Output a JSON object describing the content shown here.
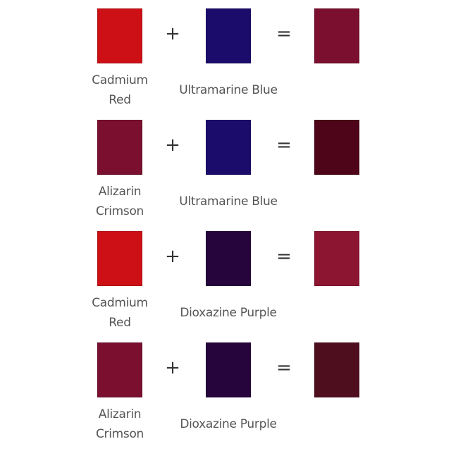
{
  "operators": {
    "plus": "+",
    "equals": "="
  },
  "mixes": [
    {
      "pigment_a": {
        "label_line1": "Cadmium",
        "label_line2": "Red",
        "color": "#CC1016"
      },
      "pigment_b": {
        "label": "Ultramarine Blue",
        "color": "#1B0C6B"
      },
      "result": {
        "color": "#7A0F2F"
      }
    },
    {
      "pigment_a": {
        "label_line1": "Alizarin",
        "label_line2": "Crimson",
        "color": "#7A0F2F"
      },
      "pigment_b": {
        "label": "Ultramarine Blue",
        "color": "#1B0C6B"
      },
      "result": {
        "color": "#4E0519"
      }
    },
    {
      "pigment_a": {
        "label_line1": "Cadmium",
        "label_line2": "Red",
        "color": "#CC1016"
      },
      "pigment_b": {
        "label": "Dioxazine Purple",
        "color": "#26053C"
      },
      "result": {
        "color": "#8C1631"
      }
    },
    {
      "pigment_a": {
        "label_line1": "Alizarin",
        "label_line2": "Crimson",
        "color": "#7A0F2F"
      },
      "pigment_b": {
        "label": "Dioxazine Purple",
        "color": "#26053C"
      },
      "result": {
        "color": "#4F0E1E"
      }
    }
  ]
}
